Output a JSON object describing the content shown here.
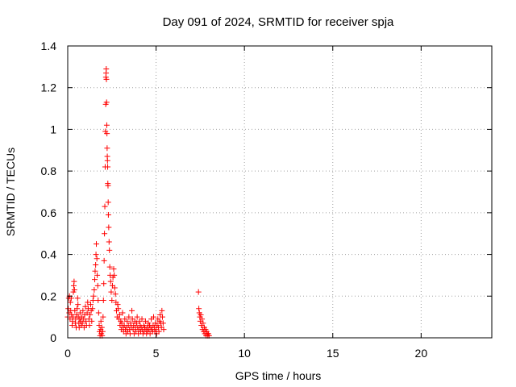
{
  "chart_data": {
    "type": "scatter",
    "title": "Day 091 of 2024, SRMTID for receiver spja",
    "xlabel": "GPS time / hours",
    "ylabel": "SRMTID / TECUs",
    "xlim": [
      0,
      24
    ],
    "ylim": [
      0,
      1.4
    ],
    "xticks": [
      0,
      5,
      10,
      15,
      20
    ],
    "yticks": [
      0,
      0.2,
      0.4,
      0.6,
      0.8,
      1,
      1.2,
      1.4
    ],
    "xtick_labels": [
      "0",
      "5",
      "10",
      "15",
      "20"
    ],
    "ytick_labels": [
      "0",
      "0.2",
      "0.4",
      "0.6",
      "0.8",
      "1",
      "1.2",
      "1.4"
    ],
    "grid": true,
    "marker": "+",
    "color": "#ff0000",
    "series": [
      {
        "name": "spja",
        "points": [
          [
            0.0,
            0.1
          ],
          [
            0.03,
            0.14
          ],
          [
            0.06,
            0.19
          ],
          [
            0.08,
            0.12
          ],
          [
            0.1,
            0.2
          ],
          [
            0.13,
            0.09
          ],
          [
            0.15,
            0.17
          ],
          [
            0.17,
            0.13
          ],
          [
            0.2,
            0.19
          ],
          [
            0.22,
            0.11
          ],
          [
            0.25,
            0.06
          ],
          [
            0.27,
            0.08
          ],
          [
            0.3,
            0.1
          ],
          [
            0.32,
            0.22
          ],
          [
            0.34,
            0.25
          ],
          [
            0.36,
            0.27
          ],
          [
            0.38,
            0.23
          ],
          [
            0.4,
            0.13
          ],
          [
            0.43,
            0.07
          ],
          [
            0.45,
            0.09
          ],
          [
            0.48,
            0.05
          ],
          [
            0.5,
            0.11
          ],
          [
            0.53,
            0.14
          ],
          [
            0.56,
            0.19
          ],
          [
            0.58,
            0.16
          ],
          [
            0.6,
            0.1
          ],
          [
            0.63,
            0.07
          ],
          [
            0.65,
            0.05
          ],
          [
            0.68,
            0.09
          ],
          [
            0.7,
            0.12
          ],
          [
            0.73,
            0.08
          ],
          [
            0.76,
            0.06
          ],
          [
            0.8,
            0.1
          ],
          [
            0.83,
            0.07
          ],
          [
            0.86,
            0.13
          ],
          [
            0.9,
            0.09
          ],
          [
            0.93,
            0.05
          ],
          [
            0.96,
            0.11
          ],
          [
            1.0,
            0.15
          ],
          [
            1.03,
            0.08
          ],
          [
            1.06,
            0.06
          ],
          [
            1.1,
            0.12
          ],
          [
            1.13,
            0.17
          ],
          [
            1.16,
            0.14
          ],
          [
            1.2,
            0.09
          ],
          [
            1.23,
            0.06
          ],
          [
            1.26,
            0.11
          ],
          [
            1.3,
            0.16
          ],
          [
            1.33,
            0.13
          ],
          [
            1.36,
            0.08
          ],
          [
            1.4,
            0.14
          ],
          [
            1.43,
            0.18
          ],
          [
            1.46,
            0.2
          ],
          [
            1.5,
            0.23
          ],
          [
            1.53,
            0.28
          ],
          [
            1.55,
            0.32
          ],
          [
            1.58,
            0.35
          ],
          [
            1.6,
            0.4
          ],
          [
            1.62,
            0.45
          ],
          [
            1.65,
            0.38
          ],
          [
            1.67,
            0.3
          ],
          [
            1.7,
            0.25
          ],
          [
            1.72,
            0.18
          ],
          [
            1.75,
            0.12
          ],
          [
            1.78,
            0.06
          ],
          [
            1.8,
            0.03
          ],
          [
            1.83,
            0.01
          ],
          [
            1.86,
            0.04
          ],
          [
            1.88,
            0.08
          ],
          [
            1.9,
            0.02
          ],
          [
            1.93,
            0.05
          ],
          [
            1.95,
            0.01
          ],
          [
            1.98,
            0.03
          ],
          [
            2.0,
            0.1
          ],
          [
            2.02,
            0.18
          ],
          [
            2.04,
            0.26
          ],
          [
            2.06,
            0.37
          ],
          [
            2.08,
            0.5
          ],
          [
            2.1,
            0.63
          ],
          [
            2.12,
            0.82
          ],
          [
            2.13,
            0.99
          ],
          [
            2.15,
            1.12
          ],
          [
            2.16,
            1.25
          ],
          [
            2.17,
            1.27
          ],
          [
            2.18,
            1.29
          ],
          [
            2.19,
            1.24
          ],
          [
            2.2,
            1.13
          ],
          [
            2.21,
            1.02
          ],
          [
            2.22,
            0.98
          ],
          [
            2.23,
            0.91
          ],
          [
            2.24,
            0.87
          ],
          [
            2.25,
            0.85
          ],
          [
            2.26,
            0.82
          ],
          [
            2.27,
            0.74
          ],
          [
            2.28,
            0.73
          ],
          [
            2.29,
            0.65
          ],
          [
            2.3,
            0.59
          ],
          [
            2.32,
            0.53
          ],
          [
            2.34,
            0.46
          ],
          [
            2.36,
            0.42
          ],
          [
            2.38,
            0.34
          ],
          [
            2.4,
            0.3
          ],
          [
            2.43,
            0.27
          ],
          [
            2.46,
            0.22
          ],
          [
            2.5,
            0.18
          ],
          [
            2.53,
            0.25
          ],
          [
            2.56,
            0.29
          ],
          [
            2.6,
            0.33
          ],
          [
            2.63,
            0.3
          ],
          [
            2.66,
            0.24
          ],
          [
            2.7,
            0.21
          ],
          [
            2.73,
            0.17
          ],
          [
            2.76,
            0.13
          ],
          [
            2.8,
            0.1
          ],
          [
            2.83,
            0.16
          ],
          [
            2.86,
            0.14
          ],
          [
            2.9,
            0.09
          ],
          [
            2.93,
            0.11
          ],
          [
            2.96,
            0.06
          ],
          [
            3.0,
            0.08
          ],
          [
            3.03,
            0.04
          ],
          [
            3.06,
            0.07
          ],
          [
            3.1,
            0.12
          ],
          [
            3.13,
            0.05
          ],
          [
            3.16,
            0.03
          ],
          [
            3.2,
            0.06
          ],
          [
            3.23,
            0.09
          ],
          [
            3.26,
            0.04
          ],
          [
            3.3,
            0.02
          ],
          [
            3.33,
            0.05
          ],
          [
            3.36,
            0.08
          ],
          [
            3.4,
            0.03
          ],
          [
            3.43,
            0.06
          ],
          [
            3.46,
            0.1
          ],
          [
            3.5,
            0.04
          ],
          [
            3.53,
            0.02
          ],
          [
            3.56,
            0.07
          ],
          [
            3.6,
            0.05
          ],
          [
            3.63,
            0.13
          ],
          [
            3.66,
            0.09
          ],
          [
            3.7,
            0.04
          ],
          [
            3.73,
            0.06
          ],
          [
            3.76,
            0.02
          ],
          [
            3.8,
            0.08
          ],
          [
            3.83,
            0.05
          ],
          [
            3.86,
            0.03
          ],
          [
            3.9,
            0.07
          ],
          [
            3.93,
            0.1
          ],
          [
            3.96,
            0.05
          ],
          [
            4.0,
            0.02
          ],
          [
            4.03,
            0.04
          ],
          [
            4.06,
            0.08
          ],
          [
            4.1,
            0.06
          ],
          [
            4.13,
            0.03
          ],
          [
            4.16,
            0.05
          ],
          [
            4.2,
            0.09
          ],
          [
            4.23,
            0.04
          ],
          [
            4.26,
            0.02
          ],
          [
            4.3,
            0.06
          ],
          [
            4.33,
            0.03
          ],
          [
            4.36,
            0.05
          ],
          [
            4.4,
            0.08
          ],
          [
            4.43,
            0.04
          ],
          [
            4.46,
            0.02
          ],
          [
            4.5,
            0.05
          ],
          [
            4.53,
            0.03
          ],
          [
            4.56,
            0.07
          ],
          [
            4.6,
            0.04
          ],
          [
            4.63,
            0.06
          ],
          [
            4.66,
            0.02
          ],
          [
            4.7,
            0.05
          ],
          [
            4.73,
            0.09
          ],
          [
            4.76,
            0.04
          ],
          [
            4.8,
            0.03
          ],
          [
            4.83,
            0.06
          ],
          [
            4.86,
            0.1
          ],
          [
            4.9,
            0.05
          ],
          [
            4.93,
            0.03
          ],
          [
            4.96,
            0.07
          ],
          [
            5.0,
            0.04
          ],
          [
            5.03,
            0.02
          ],
          [
            5.06,
            0.06
          ],
          [
            5.1,
            0.09
          ],
          [
            5.13,
            0.05
          ],
          [
            5.16,
            0.03
          ],
          [
            5.2,
            0.08
          ],
          [
            5.23,
            0.11
          ],
          [
            5.26,
            0.07
          ],
          [
            5.3,
            0.05
          ],
          [
            5.33,
            0.13
          ],
          [
            5.36,
            0.1
          ],
          [
            5.4,
            0.07
          ],
          [
            5.43,
            0.04
          ],
          [
            7.4,
            0.22
          ],
          [
            7.42,
            0.14
          ],
          [
            7.45,
            0.12
          ],
          [
            7.48,
            0.1
          ],
          [
            7.5,
            0.08
          ],
          [
            7.53,
            0.11
          ],
          [
            7.56,
            0.06
          ],
          [
            7.6,
            0.09
          ],
          [
            7.63,
            0.04
          ],
          [
            7.66,
            0.07
          ],
          [
            7.7,
            0.03
          ],
          [
            7.73,
            0.05
          ],
          [
            7.76,
            0.02
          ],
          [
            7.8,
            0.04
          ],
          [
            7.83,
            0.01
          ],
          [
            7.86,
            0.03
          ],
          [
            7.9,
            0.02
          ],
          [
            7.93,
            0.01
          ],
          [
            7.96,
            0.02
          ],
          [
            8.0,
            0.01
          ]
        ]
      }
    ]
  }
}
